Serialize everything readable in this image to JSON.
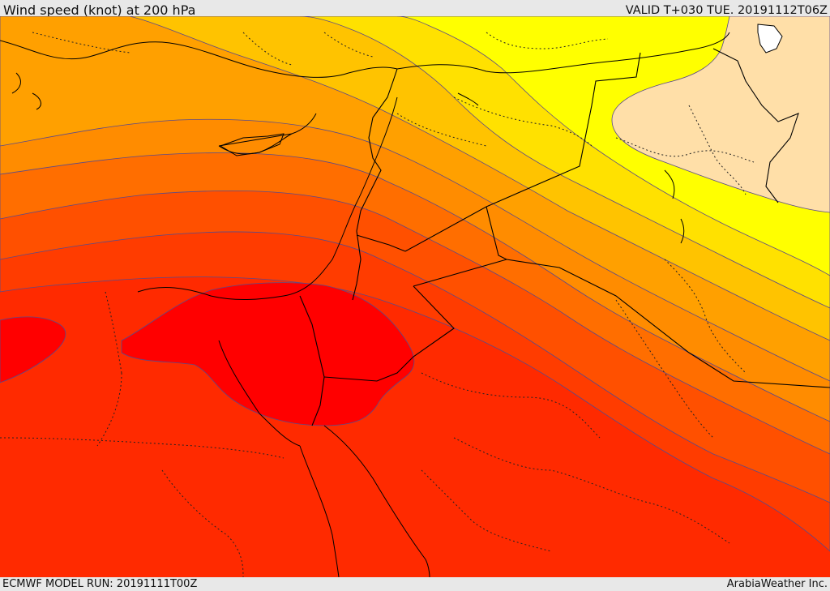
{
  "header": {
    "title": "Wind speed (knot) at 200 hPa",
    "valid_time": "VALID T+030 TUE. 20191112T06Z"
  },
  "footer": {
    "model_run": "ECMWF MODEL RUN: 20191111T00Z",
    "provider": "ArabiaWeather Inc."
  },
  "map": {
    "variable": "wind speed",
    "level": "200 hPa",
    "palette": {
      "band_peach": "#ffdfa8",
      "band_yellow": "#ffff00",
      "band_gold": "#ffe100",
      "band_amber": "#ffc300",
      "band_orange_light": "#ffa000",
      "band_orange": "#ff8c00",
      "band_orange_dark": "#ff6e00",
      "band_red_orange": "#ff5000",
      "band_red_light": "#ff3c00",
      "band_red": "#ff2a00",
      "band_core": "#ff0000",
      "contour_line": "#5a4a8a",
      "border_line": "#000000"
    }
  }
}
